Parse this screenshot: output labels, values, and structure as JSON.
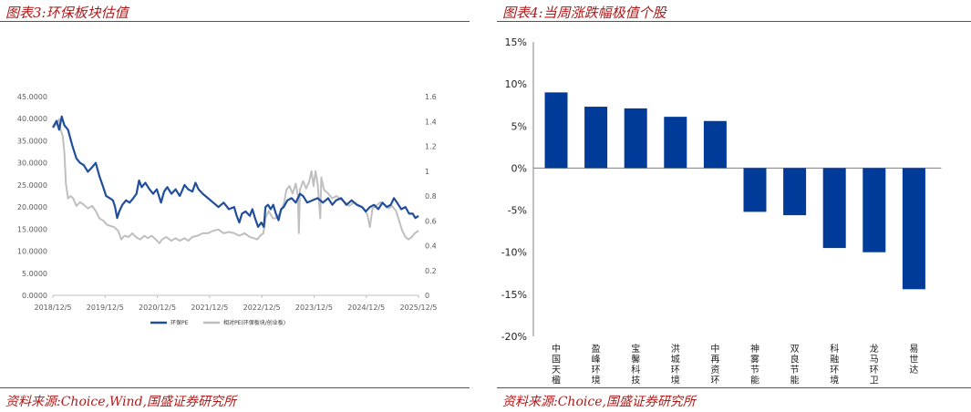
{
  "left_panel": {
    "title": "图表3:环保板块估值",
    "source": "资料来源:Choice,Wind,国盛证券研究所"
  },
  "right_panel": {
    "title": "图表4:当周涨跌幅极值个股",
    "source": "资料来源:Choice,国盛证券研究所"
  },
  "colors": {
    "accent": "#c0262c",
    "series_pe": "#1f4e9c",
    "series_rel": "#bfbfbf",
    "bar": "#003b9a"
  },
  "chart_data": [
    {
      "type": "line",
      "title": "图表3:环保板块估值",
      "x_ticks": [
        "2018/12/5",
        "2019/12/5",
        "2020/12/5",
        "2021/12/5",
        "2022/12/5",
        "2023/12/5",
        "2024/12/5",
        "2025/12/5"
      ],
      "x_range": [
        2018.93,
        2025.93
      ],
      "y_left": {
        "ticks": [
          "0.0000",
          "5.0000",
          "10.0000",
          "15.0000",
          "20.0000",
          "25.0000",
          "30.0000",
          "35.0000",
          "40.0000",
          "45.0000"
        ],
        "range": [
          0,
          45
        ]
      },
      "y_right": {
        "ticks": [
          "0",
          "0.2",
          "0.4",
          "0.6",
          "0.8",
          "1",
          "1.2",
          "1.4",
          "1.6"
        ],
        "range": [
          0,
          1.6
        ]
      },
      "legend": [
        "环保PE",
        "相对PE(环保板块/创业板)"
      ],
      "legend_position": "bottom",
      "series": [
        {
          "name": "环保PE",
          "axis": "left",
          "points": [
            [
              2018.93,
              38
            ],
            [
              2019.0,
              39.5
            ],
            [
              2019.05,
              37.5
            ],
            [
              2019.1,
              40.5
            ],
            [
              2019.15,
              38.5
            ],
            [
              2019.22,
              37.5
            ],
            [
              2019.3,
              34
            ],
            [
              2019.38,
              31
            ],
            [
              2019.45,
              30
            ],
            [
              2019.52,
              29.5
            ],
            [
              2019.6,
              28
            ],
            [
              2019.68,
              29
            ],
            [
              2019.75,
              30
            ],
            [
              2019.82,
              27
            ],
            [
              2019.88,
              25
            ],
            [
              2019.95,
              22.5
            ],
            [
              2020.02,
              22
            ],
            [
              2020.08,
              21.5
            ],
            [
              2020.12,
              20
            ],
            [
              2020.16,
              17.5
            ],
            [
              2020.2,
              19
            ],
            [
              2020.26,
              20.5
            ],
            [
              2020.33,
              21.5
            ],
            [
              2020.4,
              21
            ],
            [
              2020.47,
              22
            ],
            [
              2020.53,
              23
            ],
            [
              2020.58,
              26
            ],
            [
              2020.63,
              24.5
            ],
            [
              2020.7,
              25.5
            ],
            [
              2020.78,
              24
            ],
            [
              2020.85,
              23
            ],
            [
              2020.92,
              24
            ],
            [
              2021.0,
              21
            ],
            [
              2021.06,
              23.5
            ],
            [
              2021.12,
              24.5
            ],
            [
              2021.2,
              23
            ],
            [
              2021.28,
              24
            ],
            [
              2021.36,
              22.5
            ],
            [
              2021.45,
              25
            ],
            [
              2021.52,
              24
            ],
            [
              2021.6,
              23.5
            ],
            [
              2021.66,
              25.5
            ],
            [
              2021.72,
              24
            ],
            [
              2021.8,
              23
            ],
            [
              2021.9,
              22
            ],
            [
              2022.0,
              21
            ],
            [
              2022.1,
              20
            ],
            [
              2022.2,
              21
            ],
            [
              2022.3,
              19.5
            ],
            [
              2022.4,
              20
            ],
            [
              2022.45,
              18
            ],
            [
              2022.5,
              16.5
            ],
            [
              2022.55,
              18.5
            ],
            [
              2022.62,
              19
            ],
            [
              2022.7,
              18
            ],
            [
              2022.75,
              19.5
            ],
            [
              2022.8,
              17.5
            ],
            [
              2022.86,
              15.5
            ],
            [
              2022.92,
              16.5
            ],
            [
              2022.97,
              15.5
            ],
            [
              2023.0,
              20
            ],
            [
              2023.05,
              20.5
            ],
            [
              2023.1,
              19.5
            ],
            [
              2023.15,
              20.5
            ],
            [
              2023.2,
              18.5
            ],
            [
              2023.25,
              17
            ],
            [
              2023.3,
              19.5
            ],
            [
              2023.35,
              20
            ],
            [
              2023.42,
              21.5
            ],
            [
              2023.5,
              22
            ],
            [
              2023.58,
              21
            ],
            [
              2023.66,
              23
            ],
            [
              2023.72,
              22.5
            ],
            [
              2023.8,
              21
            ],
            [
              2023.9,
              21.5
            ],
            [
              2024.0,
              22
            ],
            [
              2024.1,
              21
            ],
            [
              2024.2,
              22
            ],
            [
              2024.28,
              20.5
            ],
            [
              2024.35,
              21.5
            ],
            [
              2024.45,
              22
            ],
            [
              2024.55,
              20.5
            ],
            [
              2024.65,
              21.5
            ],
            [
              2024.75,
              20.5
            ],
            [
              2024.85,
              20
            ],
            [
              2024.92,
              19
            ],
            [
              2025.0,
              20
            ],
            [
              2025.08,
              20.5
            ],
            [
              2025.16,
              19.5
            ],
            [
              2025.24,
              21
            ],
            [
              2025.32,
              20
            ],
            [
              2025.4,
              20.5
            ],
            [
              2025.46,
              22
            ],
            [
              2025.52,
              21
            ],
            [
              2025.6,
              19.5
            ],
            [
              2025.68,
              20
            ],
            [
              2025.75,
              18.5
            ],
            [
              2025.82,
              18.5
            ],
            [
              2025.87,
              17.5
            ],
            [
              2025.93,
              18
            ]
          ]
        },
        {
          "name": "相对PE(环保板块/创业板)",
          "axis": "right",
          "points": [
            [
              2018.93,
              1.35
            ],
            [
              2019.0,
              1.38
            ],
            [
              2019.05,
              1.42
            ],
            [
              2019.08,
              1.33
            ],
            [
              2019.12,
              1.28
            ],
            [
              2019.15,
              1.15
            ],
            [
              2019.18,
              0.9
            ],
            [
              2019.22,
              0.78
            ],
            [
              2019.27,
              0.8
            ],
            [
              2019.32,
              0.78
            ],
            [
              2019.38,
              0.72
            ],
            [
              2019.45,
              0.75
            ],
            [
              2019.52,
              0.73
            ],
            [
              2019.6,
              0.7
            ],
            [
              2019.68,
              0.72
            ],
            [
              2019.75,
              0.68
            ],
            [
              2019.82,
              0.62
            ],
            [
              2019.9,
              0.6
            ],
            [
              2019.96,
              0.57
            ],
            [
              2020.02,
              0.56
            ],
            [
              2020.1,
              0.55
            ],
            [
              2020.18,
              0.52
            ],
            [
              2020.24,
              0.45
            ],
            [
              2020.3,
              0.48
            ],
            [
              2020.38,
              0.47
            ],
            [
              2020.45,
              0.5
            ],
            [
              2020.52,
              0.47
            ],
            [
              2020.6,
              0.45
            ],
            [
              2020.68,
              0.48
            ],
            [
              2020.75,
              0.46
            ],
            [
              2020.82,
              0.48
            ],
            [
              2020.9,
              0.45
            ],
            [
              2020.97,
              0.42
            ],
            [
              2021.02,
              0.45
            ],
            [
              2021.1,
              0.47
            ],
            [
              2021.2,
              0.44
            ],
            [
              2021.28,
              0.46
            ],
            [
              2021.36,
              0.44
            ],
            [
              2021.45,
              0.46
            ],
            [
              2021.52,
              0.44
            ],
            [
              2021.6,
              0.47
            ],
            [
              2021.7,
              0.48
            ],
            [
              2021.8,
              0.5
            ],
            [
              2021.9,
              0.5
            ],
            [
              2022.0,
              0.52
            ],
            [
              2022.1,
              0.53
            ],
            [
              2022.2,
              0.5
            ],
            [
              2022.3,
              0.51
            ],
            [
              2022.4,
              0.5
            ],
            [
              2022.5,
              0.48
            ],
            [
              2022.6,
              0.5
            ],
            [
              2022.7,
              0.47
            ],
            [
              2022.78,
              0.46
            ],
            [
              2022.84,
              0.45
            ],
            [
              2022.9,
              0.48
            ],
            [
              2022.96,
              0.5
            ],
            [
              2023.0,
              0.62
            ],
            [
              2023.06,
              0.68
            ],
            [
              2023.14,
              0.62
            ],
            [
              2023.2,
              0.62
            ],
            [
              2023.26,
              0.65
            ],
            [
              2023.3,
              0.68
            ],
            [
              2023.36,
              0.75
            ],
            [
              2023.4,
              0.85
            ],
            [
              2023.46,
              0.88
            ],
            [
              2023.52,
              0.82
            ],
            [
              2023.58,
              0.9
            ],
            [
              2023.62,
              0.8
            ],
            [
              2023.64,
              0.5
            ],
            [
              2023.66,
              0.85
            ],
            [
              2023.72,
              0.92
            ],
            [
              2023.78,
              0.86
            ],
            [
              2023.84,
              0.92
            ],
            [
              2023.88,
              1.0
            ],
            [
              2023.92,
              0.88
            ],
            [
              2023.96,
              1.0
            ],
            [
              2024.0,
              0.9
            ],
            [
              2024.05,
              0.62
            ],
            [
              2024.07,
              0.95
            ],
            [
              2024.12,
              0.85
            ],
            [
              2024.2,
              0.82
            ],
            [
              2024.28,
              0.78
            ],
            [
              2024.36,
              0.8
            ],
            [
              2024.45,
              0.77
            ],
            [
              2024.52,
              0.75
            ],
            [
              2024.6,
              0.72
            ],
            [
              2024.7,
              0.75
            ],
            [
              2024.8,
              0.72
            ],
            [
              2024.88,
              0.7
            ],
            [
              2024.95,
              0.65
            ],
            [
              2025.0,
              0.55
            ],
            [
              2025.05,
              0.7
            ],
            [
              2025.12,
              0.72
            ],
            [
              2025.2,
              0.75
            ],
            [
              2025.28,
              0.73
            ],
            [
              2025.36,
              0.7
            ],
            [
              2025.42,
              0.72
            ],
            [
              2025.5,
              0.68
            ],
            [
              2025.56,
              0.6
            ],
            [
              2025.62,
              0.52
            ],
            [
              2025.68,
              0.47
            ],
            [
              2025.74,
              0.45
            ],
            [
              2025.8,
              0.47
            ],
            [
              2025.86,
              0.5
            ],
            [
              2025.93,
              0.52
            ]
          ]
        }
      ]
    },
    {
      "type": "bar",
      "title": "图表4:当周涨跌幅极值个股",
      "categories": [
        "中国天楹",
        "盈峰环境",
        "宝馨科技",
        "洪城环境",
        "中再资环",
        "神雾节能",
        "双良节能",
        "科融环境",
        "龙马环卫",
        "易世达"
      ],
      "values": [
        9.0,
        7.3,
        7.1,
        6.1,
        5.6,
        -5.2,
        -5.6,
        -9.5,
        -10.0,
        -14.4
      ],
      "unit": "%",
      "y_ticks": [
        "15%",
        "10%",
        "5%",
        "0%",
        "-5%",
        "-10%",
        "-15%",
        "-20%"
      ],
      "ylim": [
        -20,
        15
      ]
    }
  ]
}
